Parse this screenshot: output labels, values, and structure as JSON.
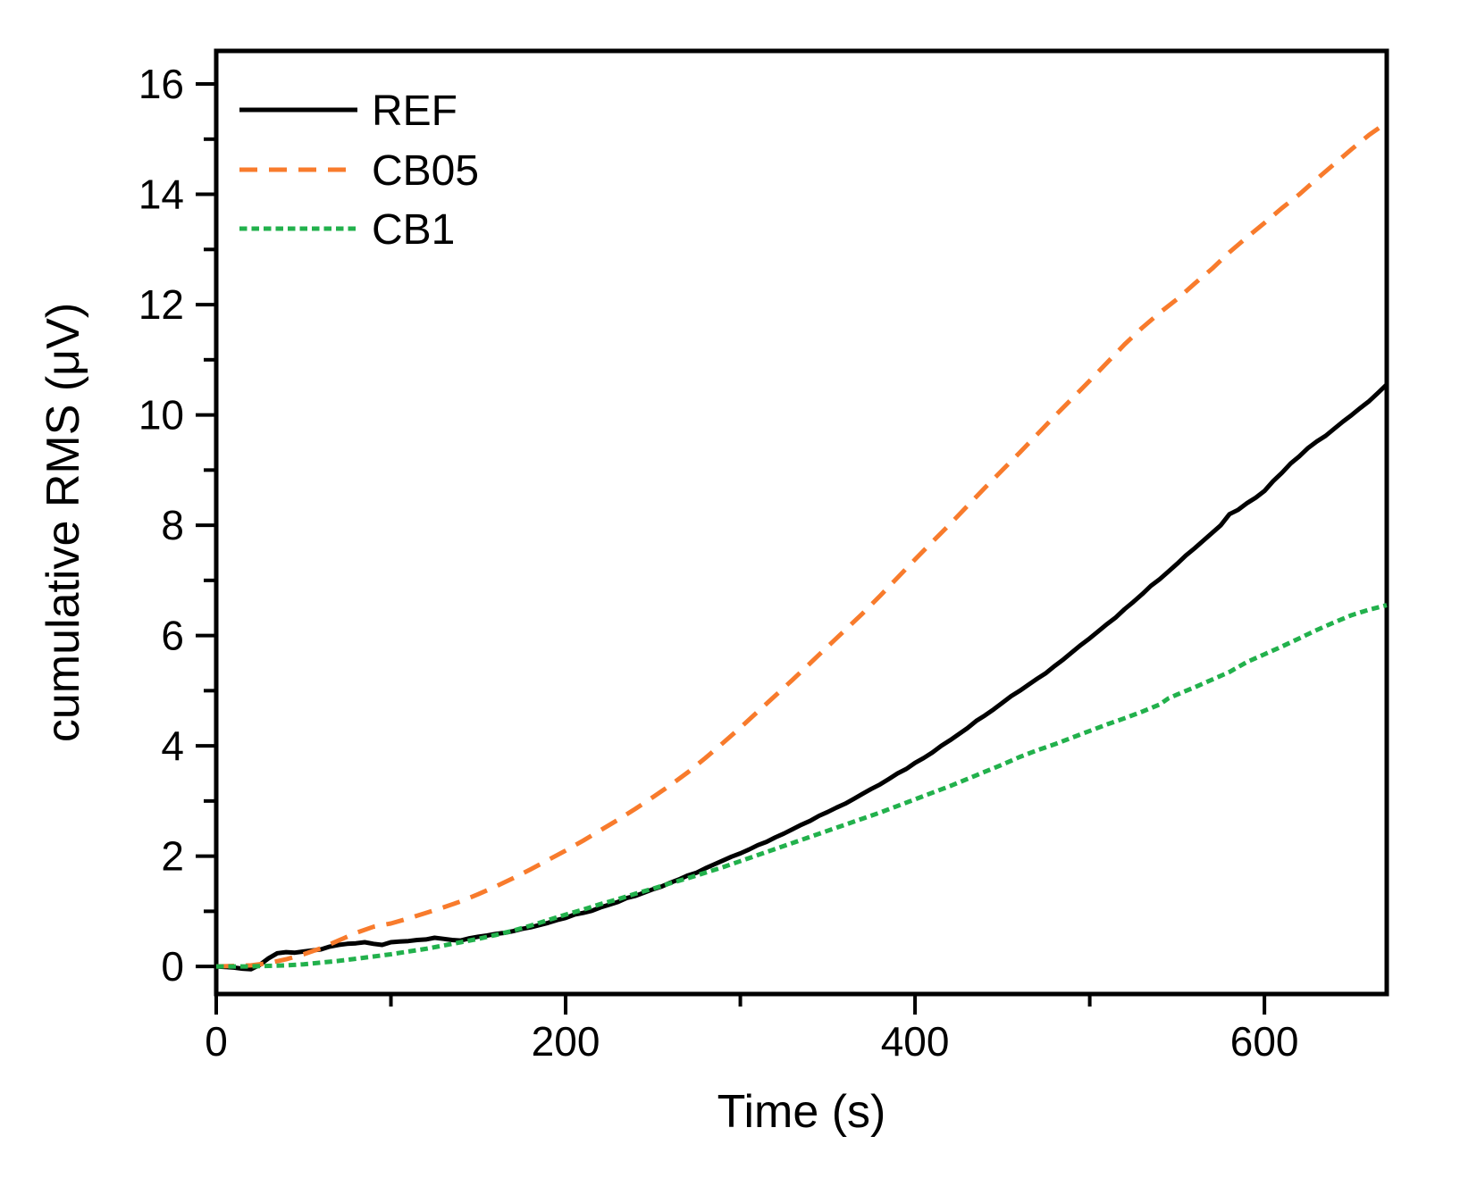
{
  "figure": {
    "background": "#ffffff",
    "axis_color": "#000000"
  },
  "chart_data": {
    "type": "line",
    "title": "",
    "xlabel": "Time (s)",
    "ylabel": "cumulative RMS (μV)",
    "xlim": [
      0,
      670
    ],
    "ylim": [
      -0.5,
      16.6
    ],
    "x_major_ticks": [
      0,
      200,
      400,
      600
    ],
    "x_minor_ticks": [
      100,
      300,
      500
    ],
    "y_major_ticks": [
      0,
      2,
      4,
      6,
      8,
      10,
      12,
      14,
      16
    ],
    "y_minor_ticks": [
      1,
      3,
      5,
      7,
      9,
      11,
      13,
      15
    ],
    "grid": false,
    "legend_position": "top-left",
    "series": [
      {
        "name": "REF",
        "color": "#000000",
        "line_style": "solid",
        "dash": [],
        "line_width": 5,
        "points": [
          [
            0,
            0
          ],
          [
            5,
            -0.01
          ],
          [
            10,
            -0.02
          ],
          [
            15,
            -0.04
          ],
          [
            20,
            -0.05
          ],
          [
            25,
            0.03
          ],
          [
            30,
            0.15
          ],
          [
            35,
            0.24
          ],
          [
            40,
            0.26
          ],
          [
            45,
            0.25
          ],
          [
            50,
            0.27
          ],
          [
            55,
            0.29
          ],
          [
            60,
            0.31
          ],
          [
            65,
            0.36
          ],
          [
            70,
            0.39
          ],
          [
            75,
            0.41
          ],
          [
            80,
            0.42
          ],
          [
            85,
            0.44
          ],
          [
            90,
            0.41
          ],
          [
            95,
            0.39
          ],
          [
            100,
            0.44
          ],
          [
            105,
            0.45
          ],
          [
            110,
            0.46
          ],
          [
            115,
            0.48
          ],
          [
            120,
            0.49
          ],
          [
            125,
            0.52
          ],
          [
            130,
            0.5
          ],
          [
            135,
            0.48
          ],
          [
            140,
            0.47
          ],
          [
            145,
            0.51
          ],
          [
            150,
            0.54
          ],
          [
            155,
            0.56
          ],
          [
            160,
            0.59
          ],
          [
            165,
            0.61
          ],
          [
            170,
            0.64
          ],
          [
            175,
            0.68
          ],
          [
            180,
            0.71
          ],
          [
            185,
            0.75
          ],
          [
            190,
            0.79
          ],
          [
            195,
            0.84
          ],
          [
            200,
            0.88
          ],
          [
            205,
            0.94
          ],
          [
            210,
            0.97
          ],
          [
            215,
            1.01
          ],
          [
            220,
            1.07
          ],
          [
            225,
            1.12
          ],
          [
            230,
            1.17
          ],
          [
            235,
            1.24
          ],
          [
            240,
            1.28
          ],
          [
            245,
            1.34
          ],
          [
            250,
            1.4
          ],
          [
            255,
            1.45
          ],
          [
            260,
            1.52
          ],
          [
            265,
            1.58
          ],
          [
            270,
            1.65
          ],
          [
            275,
            1.7
          ],
          [
            280,
            1.78
          ],
          [
            285,
            1.85
          ],
          [
            290,
            1.92
          ],
          [
            295,
            1.99
          ],
          [
            300,
            2.05
          ],
          [
            305,
            2.12
          ],
          [
            310,
            2.2
          ],
          [
            315,
            2.26
          ],
          [
            320,
            2.34
          ],
          [
            325,
            2.41
          ],
          [
            330,
            2.49
          ],
          [
            335,
            2.57
          ],
          [
            340,
            2.64
          ],
          [
            345,
            2.73
          ],
          [
            350,
            2.8
          ],
          [
            355,
            2.88
          ],
          [
            360,
            2.95
          ],
          [
            365,
            3.04
          ],
          [
            370,
            3.13
          ],
          [
            375,
            3.22
          ],
          [
            380,
            3.3
          ],
          [
            385,
            3.4
          ],
          [
            390,
            3.5
          ],
          [
            395,
            3.58
          ],
          [
            400,
            3.69
          ],
          [
            405,
            3.78
          ],
          [
            410,
            3.88
          ],
          [
            415,
            4.0
          ],
          [
            420,
            4.1
          ],
          [
            425,
            4.21
          ],
          [
            430,
            4.32
          ],
          [
            435,
            4.45
          ],
          [
            440,
            4.55
          ],
          [
            445,
            4.66
          ],
          [
            450,
            4.78
          ],
          [
            455,
            4.9
          ],
          [
            460,
            5.0
          ],
          [
            465,
            5.11
          ],
          [
            470,
            5.22
          ],
          [
            475,
            5.32
          ],
          [
            480,
            5.45
          ],
          [
            485,
            5.57
          ],
          [
            490,
            5.7
          ],
          [
            495,
            5.83
          ],
          [
            500,
            5.95
          ],
          [
            505,
            6.08
          ],
          [
            510,
            6.21
          ],
          [
            515,
            6.33
          ],
          [
            520,
            6.48
          ],
          [
            525,
            6.61
          ],
          [
            530,
            6.75
          ],
          [
            535,
            6.9
          ],
          [
            540,
            7.02
          ],
          [
            545,
            7.16
          ],
          [
            550,
            7.3
          ],
          [
            555,
            7.45
          ],
          [
            560,
            7.58
          ],
          [
            565,
            7.72
          ],
          [
            570,
            7.86
          ],
          [
            575,
            8.0
          ],
          [
            580,
            8.2
          ],
          [
            585,
            8.28
          ],
          [
            590,
            8.4
          ],
          [
            595,
            8.5
          ],
          [
            600,
            8.62
          ],
          [
            605,
            8.8
          ],
          [
            610,
            8.95
          ],
          [
            615,
            9.12
          ],
          [
            620,
            9.25
          ],
          [
            625,
            9.4
          ],
          [
            630,
            9.52
          ],
          [
            635,
            9.62
          ],
          [
            640,
            9.75
          ],
          [
            645,
            9.88
          ],
          [
            650,
            10.0
          ],
          [
            655,
            10.13
          ],
          [
            660,
            10.25
          ],
          [
            665,
            10.4
          ],
          [
            670,
            10.55
          ]
        ]
      },
      {
        "name": "CB05",
        "color": "#f87b2c",
        "line_style": "dashed",
        "dash": [
          20,
          13
        ],
        "line_width": 5,
        "points": [
          [
            0,
            0
          ],
          [
            10,
            0.01
          ],
          [
            20,
            0.02
          ],
          [
            30,
            0.06
          ],
          [
            40,
            0.13
          ],
          [
            50,
            0.22
          ],
          [
            60,
            0.33
          ],
          [
            70,
            0.47
          ],
          [
            80,
            0.61
          ],
          [
            90,
            0.72
          ],
          [
            95,
            0.75
          ],
          [
            100,
            0.78
          ],
          [
            110,
            0.87
          ],
          [
            120,
            0.97
          ],
          [
            130,
            1.07
          ],
          [
            140,
            1.18
          ],
          [
            150,
            1.31
          ],
          [
            160,
            1.45
          ],
          [
            170,
            1.6
          ],
          [
            180,
            1.76
          ],
          [
            190,
            1.93
          ],
          [
            200,
            2.1
          ],
          [
            210,
            2.28
          ],
          [
            220,
            2.47
          ],
          [
            230,
            2.66
          ],
          [
            240,
            2.86
          ],
          [
            250,
            3.07
          ],
          [
            260,
            3.29
          ],
          [
            270,
            3.52
          ],
          [
            280,
            3.78
          ],
          [
            290,
            4.05
          ],
          [
            300,
            4.33
          ],
          [
            310,
            4.62
          ],
          [
            320,
            4.91
          ],
          [
            330,
            5.2
          ],
          [
            340,
            5.5
          ],
          [
            350,
            5.8
          ],
          [
            360,
            6.1
          ],
          [
            370,
            6.4
          ],
          [
            380,
            6.72
          ],
          [
            390,
            7.05
          ],
          [
            400,
            7.38
          ],
          [
            410,
            7.7
          ],
          [
            420,
            8.02
          ],
          [
            430,
            8.35
          ],
          [
            440,
            8.68
          ],
          [
            450,
            9.0
          ],
          [
            460,
            9.32
          ],
          [
            470,
            9.65
          ],
          [
            480,
            9.98
          ],
          [
            490,
            10.3
          ],
          [
            500,
            10.62
          ],
          [
            510,
            10.95
          ],
          [
            520,
            11.28
          ],
          [
            530,
            11.58
          ],
          [
            540,
            11.85
          ],
          [
            550,
            12.1
          ],
          [
            560,
            12.38
          ],
          [
            570,
            12.65
          ],
          [
            580,
            12.95
          ],
          [
            590,
            13.22
          ],
          [
            600,
            13.48
          ],
          [
            610,
            13.75
          ],
          [
            620,
            14.0
          ],
          [
            630,
            14.28
          ],
          [
            640,
            14.55
          ],
          [
            650,
            14.82
          ],
          [
            660,
            15.08
          ],
          [
            670,
            15.3
          ]
        ]
      },
      {
        "name": "CB1",
        "color": "#22b14c",
        "line_style": "short-dash",
        "dash": [
          8.5,
          5
        ],
        "line_width": 5,
        "points": [
          [
            0,
            0
          ],
          [
            10,
            0
          ],
          [
            20,
            0
          ],
          [
            30,
            0.01
          ],
          [
            40,
            0.02
          ],
          [
            50,
            0.04
          ],
          [
            60,
            0.07
          ],
          [
            70,
            0.1
          ],
          [
            80,
            0.14
          ],
          [
            90,
            0.18
          ],
          [
            100,
            0.22
          ],
          [
            110,
            0.27
          ],
          [
            120,
            0.32
          ],
          [
            130,
            0.38
          ],
          [
            140,
            0.44
          ],
          [
            150,
            0.5
          ],
          [
            160,
            0.57
          ],
          [
            170,
            0.65
          ],
          [
            180,
            0.74
          ],
          [
            190,
            0.84
          ],
          [
            200,
            0.94
          ],
          [
            210,
            1.03
          ],
          [
            220,
            1.13
          ],
          [
            230,
            1.22
          ],
          [
            240,
            1.32
          ],
          [
            250,
            1.41
          ],
          [
            260,
            1.51
          ],
          [
            270,
            1.6
          ],
          [
            280,
            1.7
          ],
          [
            290,
            1.8
          ],
          [
            300,
            1.91
          ],
          [
            310,
            2.02
          ],
          [
            320,
            2.13
          ],
          [
            330,
            2.24
          ],
          [
            340,
            2.35
          ],
          [
            350,
            2.46
          ],
          [
            360,
            2.57
          ],
          [
            370,
            2.68
          ],
          [
            380,
            2.79
          ],
          [
            390,
            2.91
          ],
          [
            400,
            3.03
          ],
          [
            410,
            3.15
          ],
          [
            420,
            3.27
          ],
          [
            430,
            3.4
          ],
          [
            440,
            3.53
          ],
          [
            450,
            3.66
          ],
          [
            460,
            3.8
          ],
          [
            470,
            3.92
          ],
          [
            480,
            4.03
          ],
          [
            490,
            4.15
          ],
          [
            500,
            4.27
          ],
          [
            510,
            4.39
          ],
          [
            520,
            4.5
          ],
          [
            530,
            4.62
          ],
          [
            540,
            4.75
          ],
          [
            545,
            4.86
          ],
          [
            550,
            4.93
          ],
          [
            560,
            5.06
          ],
          [
            570,
            5.2
          ],
          [
            580,
            5.34
          ],
          [
            590,
            5.52
          ],
          [
            600,
            5.66
          ],
          [
            610,
            5.8
          ],
          [
            620,
            5.95
          ],
          [
            630,
            6.1
          ],
          [
            640,
            6.24
          ],
          [
            650,
            6.37
          ],
          [
            660,
            6.47
          ],
          [
            670,
            6.55
          ]
        ]
      }
    ]
  }
}
